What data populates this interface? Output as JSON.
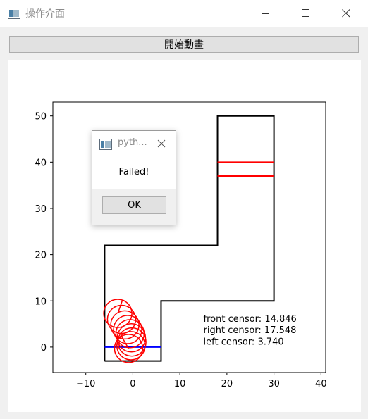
{
  "window": {
    "title": "操作介面",
    "icon": "app-window-icon"
  },
  "toolbar": {
    "start_label": "開始動畫"
  },
  "chart_data": {
    "type": "line",
    "title": "",
    "xlabel": "",
    "ylabel": "",
    "xlim": [
      -17,
      41
    ],
    "ylim": [
      -5.5,
      53
    ],
    "xticks": [
      -10,
      0,
      10,
      20,
      30,
      40
    ],
    "yticks": [
      0,
      10,
      20,
      30,
      40,
      50
    ],
    "xtick_labels": [
      "−10",
      "0",
      "10",
      "20",
      "30",
      "40"
    ],
    "ytick_labels": [
      "0",
      "10",
      "20",
      "30",
      "40",
      "50"
    ],
    "grid": false,
    "track": [
      [
        -6,
        -3
      ],
      [
        -6,
        22
      ],
      [
        18,
        22
      ],
      [
        18,
        50
      ],
      [
        30,
        50
      ],
      [
        30,
        10
      ],
      [
        6,
        10
      ],
      [
        6,
        -3
      ],
      [
        -6,
        -3
      ]
    ],
    "finish_lines": [
      {
        "y": 40,
        "x": [
          18,
          30
        ],
        "color": "#ff0000"
      },
      {
        "y": 37,
        "x": [
          18,
          30
        ],
        "color": "#ff0000"
      }
    ],
    "start_line": {
      "y": 0,
      "x": [
        -6,
        6
      ],
      "color": "#0000ff"
    },
    "car_circles": {
      "radius": 3,
      "color": "#ff0000",
      "centers": [
        [
          -3.2,
          7.3
        ],
        [
          -2.4,
          6.0
        ],
        [
          -1.7,
          4.8
        ],
        [
          -1.1,
          3.8
        ],
        [
          -0.6,
          2.9
        ],
        [
          -0.3,
          2.0
        ],
        [
          -0.2,
          1.1
        ],
        [
          -0.4,
          0.3
        ],
        [
          -0.9,
          -0.3
        ]
      ],
      "heading_lines": [
        [
          [
            -3.2,
            7.3
          ],
          [
            -2.2,
            10.2
          ]
        ],
        [
          [
            -0.9,
            -0.3
          ],
          [
            -2.4,
            2.3
          ]
        ]
      ]
    },
    "annotations": [
      {
        "text": "front censor: 14.846",
        "x": 15,
        "y": 5.5
      },
      {
        "text": "right censor: 17.548",
        "x": 15,
        "y": 3
      },
      {
        "text": "left censor: 3.740",
        "x": 15,
        "y": 0.5
      }
    ]
  },
  "dialog": {
    "title": "pyth...",
    "message": "Failed!",
    "ok_label": "OK"
  }
}
